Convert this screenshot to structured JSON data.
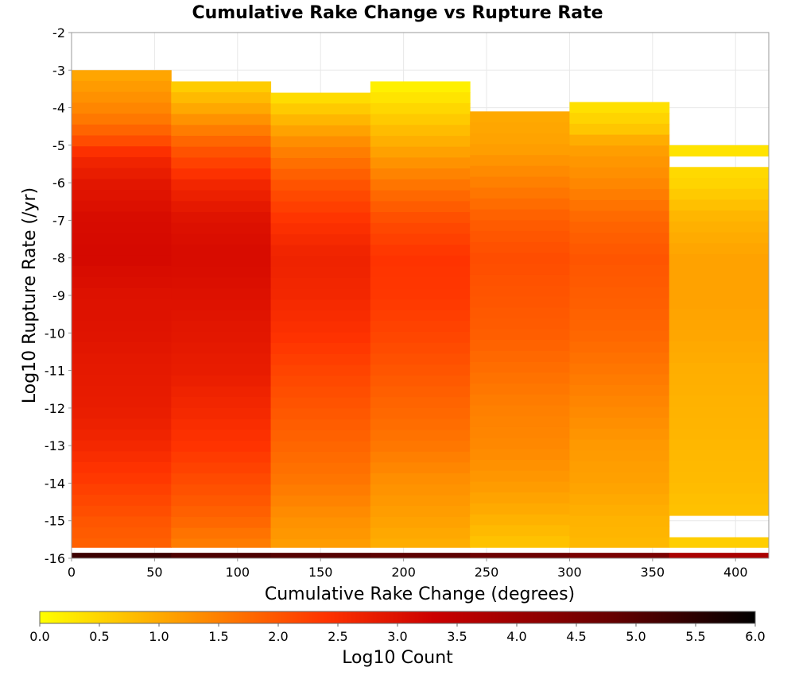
{
  "chart_data": {
    "type": "heatmap",
    "title": "Cumulative Rake Change vs Rupture Rate",
    "xlabel": "Cumulative Rake Change (degrees)",
    "ylabel": "Log10 Rupture Rate (/yr)",
    "xlim": [
      0,
      420
    ],
    "ylim": [
      -16,
      -2
    ],
    "x_ticks": [
      "0",
      "50",
      "100",
      "150",
      "200",
      "250",
      "300",
      "350",
      "400"
    ],
    "y_ticks": [
      "-2",
      "-3",
      "-4",
      "-5",
      "-6",
      "-7",
      "-8",
      "-9",
      "-10",
      "-11",
      "-12",
      "-13",
      "-14",
      "-15",
      "-16"
    ],
    "x_bin_edges": [
      0,
      60,
      120,
      180,
      240,
      300,
      360,
      420
    ],
    "y_bin_width": 0.29,
    "grid": true,
    "colorbar": {
      "label": "Log10 Count",
      "range": [
        0,
        6
      ],
      "ticks": [
        "0.0",
        "0.5",
        "1.0",
        "1.5",
        "2.0",
        "2.5",
        "3.0",
        "3.5",
        "4.0",
        "4.5",
        "5.0",
        "5.5",
        "6.0"
      ],
      "colors": [
        "#ffff00",
        "#ff9900",
        "#ff3300",
        "#cc0000",
        "#660000",
        "#000000"
      ]
    },
    "columns": [
      {
        "x_range": [
          0,
          60
        ],
        "top_y": -3.0,
        "gradient": [
          [
            -3.0,
            1.0
          ],
          [
            -3.5,
            1.2
          ],
          [
            -4.2,
            1.5
          ],
          [
            -4.8,
            2.0
          ],
          [
            -5.3,
            2.6
          ],
          [
            -6.0,
            2.9
          ],
          [
            -7.0,
            3.1
          ],
          [
            -8.0,
            3.15
          ],
          [
            -9.0,
            3.0
          ],
          [
            -10.0,
            2.95
          ],
          [
            -11.0,
            2.85
          ],
          [
            -12.0,
            2.8
          ],
          [
            -13.0,
            2.6
          ],
          [
            -14.0,
            2.3
          ],
          [
            -15.0,
            2.0
          ],
          [
            -15.9,
            1.8
          ]
        ],
        "bottom_row": 5.3
      },
      {
        "x_range": [
          60,
          120
        ],
        "top_y": -3.3,
        "gradient": [
          [
            -3.3,
            0.5
          ],
          [
            -4.0,
            1.0
          ],
          [
            -5.0,
            1.9
          ],
          [
            -6.0,
            2.6
          ],
          [
            -7.0,
            3.0
          ],
          [
            -8.0,
            3.1
          ],
          [
            -9.0,
            3.0
          ],
          [
            -10.0,
            2.9
          ],
          [
            -11.0,
            2.8
          ],
          [
            -12.0,
            2.6
          ],
          [
            -13.0,
            2.4
          ],
          [
            -14.0,
            2.1
          ],
          [
            -15.0,
            1.8
          ],
          [
            -15.9,
            1.4
          ]
        ],
        "bottom_row": 5.1
      },
      {
        "x_range": [
          120,
          180
        ],
        "top_y": -3.6,
        "gradient": [
          [
            -3.6,
            0.3
          ],
          [
            -4.0,
            0.6
          ],
          [
            -5.0,
            1.4
          ],
          [
            -6.0,
            2.0
          ],
          [
            -7.0,
            2.4
          ],
          [
            -8.0,
            2.7
          ],
          [
            -9.0,
            2.6
          ],
          [
            -10.0,
            2.45
          ],
          [
            -11.0,
            2.2
          ],
          [
            -12.0,
            2.0
          ],
          [
            -13.0,
            1.8
          ],
          [
            -14.0,
            1.6
          ],
          [
            -15.0,
            1.3
          ],
          [
            -15.9,
            1.1
          ]
        ],
        "bottom_row": 5.0
      },
      {
        "x_range": [
          180,
          240
        ],
        "top_y": -3.3,
        "gradient": [
          [
            -3.3,
            0.1
          ],
          [
            -3.9,
            0.4
          ],
          [
            -5.0,
            1.0
          ],
          [
            -6.0,
            1.6
          ],
          [
            -7.0,
            2.1
          ],
          [
            -8.0,
            2.4
          ],
          [
            -9.0,
            2.35
          ],
          [
            -10.0,
            2.2
          ],
          [
            -11.0,
            2.0
          ],
          [
            -12.0,
            1.8
          ],
          [
            -13.0,
            1.6
          ],
          [
            -14.0,
            1.3
          ],
          [
            -15.0,
            1.1
          ],
          [
            -15.9,
            0.9
          ]
        ],
        "bottom_row": 4.9
      },
      {
        "x_range": [
          240,
          300
        ],
        "top_y": -4.1,
        "gradient": [
          [
            -4.1,
            1.0
          ],
          [
            -5.0,
            1.1
          ],
          [
            -6.0,
            1.5
          ],
          [
            -7.0,
            1.9
          ],
          [
            -8.0,
            2.1
          ],
          [
            -9.0,
            2.0
          ],
          [
            -10.0,
            1.9
          ],
          [
            -11.0,
            1.7
          ],
          [
            -12.0,
            1.5
          ],
          [
            -13.0,
            1.4
          ],
          [
            -14.0,
            1.2
          ],
          [
            -15.0,
            0.9
          ],
          [
            -15.9,
            0.6
          ]
        ],
        "bottom_row": 4.7
      },
      {
        "x_range": [
          300,
          360
        ],
        "top_y": -3.85,
        "gradient": [
          [
            -3.85,
            0.3
          ],
          [
            -4.5,
            0.6
          ],
          [
            -5.0,
            1.1
          ],
          [
            -6.0,
            1.4
          ],
          [
            -7.0,
            1.8
          ],
          [
            -8.0,
            2.0
          ],
          [
            -9.0,
            1.9
          ],
          [
            -10.0,
            1.8
          ],
          [
            -11.0,
            1.6
          ],
          [
            -12.0,
            1.4
          ],
          [
            -13.0,
            1.2
          ],
          [
            -14.0,
            1.1
          ],
          [
            -15.0,
            0.9
          ],
          [
            -15.9,
            0.8
          ]
        ],
        "bottom_row": 4.5
      },
      {
        "x_range": [
          360,
          420
        ],
        "top_y": -5.0,
        "gradient": [
          [
            -5.0,
            0.3
          ],
          [
            -6.0,
            0.5
          ],
          [
            -7.0,
            0.9
          ],
          [
            -8.0,
            1.1
          ],
          [
            -9.0,
            1.1
          ],
          [
            -10.0,
            1.05
          ],
          [
            -11.0,
            0.95
          ],
          [
            -12.0,
            0.9
          ],
          [
            -13.0,
            0.85
          ],
          [
            -14.0,
            0.8
          ],
          [
            -15.0,
            0.7
          ],
          [
            -15.9,
            0.5
          ]
        ],
        "bottom_row": 3.8,
        "gaps": [
          [
            -5.6,
            -5.3
          ],
          [
            -15.3,
            -15.0
          ],
          [
            -15.9,
            -15.6
          ]
        ]
      }
    ]
  }
}
